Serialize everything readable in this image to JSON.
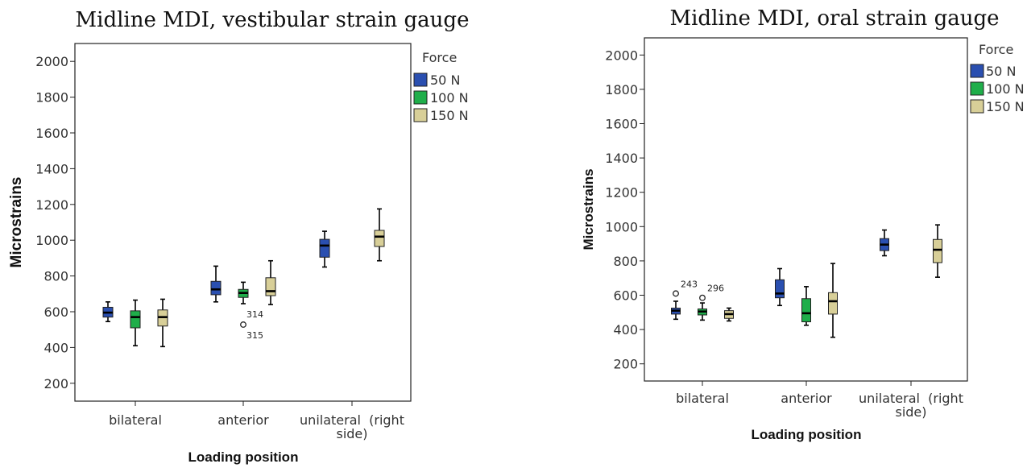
{
  "legend": {
    "title": "Force",
    "entries": [
      {
        "label": "50 N",
        "color": "#2a4fb0"
      },
      {
        "label": "100 N",
        "color": "#1fae4a"
      },
      {
        "label": "150 N",
        "color": "#d8cf98"
      }
    ]
  },
  "chart_data": [
    {
      "type": "boxplot",
      "title": "Midline MDI, vestibular strain gauge",
      "xlabel": "Loading position",
      "ylabel": "Microstrains",
      "ylim": [
        100,
        2100
      ],
      "yticks": [
        200,
        400,
        600,
        800,
        1000,
        1200,
        1400,
        1600,
        1800,
        2000
      ],
      "grid": false,
      "legend_position": "top-right",
      "categories": [
        {
          "label": "bilateral",
          "lines": [
            "bilateral"
          ]
        },
        {
          "label": "anterior",
          "lines": [
            "anterior"
          ]
        },
        {
          "label": "unilateral (right side)",
          "lines": [
            "unilateral  (right",
            "side)"
          ]
        }
      ],
      "series": [
        {
          "name": "50 N",
          "boxes": [
            {
              "min": 545,
              "q1": 570,
              "median": 595,
              "q3": 625,
              "max": 655
            },
            {
              "min": 655,
              "q1": 695,
              "median": 725,
              "q3": 770,
              "max": 855
            },
            {
              "min": 850,
              "q1": 905,
              "median": 970,
              "q3": 1005,
              "max": 1050
            }
          ]
        },
        {
          "name": "100 N",
          "boxes": [
            {
              "min": 410,
              "q1": 510,
              "median": 570,
              "q3": 605,
              "max": 665
            },
            {
              "min": 645,
              "q1": 680,
              "median": 705,
              "q3": 725,
              "max": 765,
              "outliers": [
                {
                  "value": 528,
                  "labels": [
                    "314",
                    "315"
                  ]
                }
              ]
            },
            null
          ]
        },
        {
          "name": "150 N",
          "boxes": [
            {
              "min": 405,
              "q1": 520,
              "median": 570,
              "q3": 610,
              "max": 670
            },
            {
              "min": 640,
              "q1": 690,
              "median": 715,
              "q3": 790,
              "max": 885
            },
            {
              "min": 885,
              "q1": 965,
              "median": 1020,
              "q3": 1055,
              "max": 1175
            }
          ]
        }
      ]
    },
    {
      "type": "boxplot",
      "title": "Midline MDI, oral strain gauge",
      "xlabel": "Loading position",
      "ylabel": "Microstrains",
      "ylim": [
        100,
        2100
      ],
      "yticks": [
        200,
        400,
        600,
        800,
        1000,
        1200,
        1400,
        1600,
        1800,
        2000
      ],
      "grid": false,
      "legend_position": "top-right",
      "categories": [
        {
          "label": "bilateral",
          "lines": [
            "bilateral"
          ]
        },
        {
          "label": "anterior",
          "lines": [
            "anterior"
          ]
        },
        {
          "label": "unilateral (right side)",
          "lines": [
            "unilateral  (right",
            "side)"
          ]
        }
      ],
      "series": [
        {
          "name": "50 N",
          "boxes": [
            {
              "min": 460,
              "q1": 490,
              "median": 510,
              "q3": 525,
              "max": 565,
              "outliers": [
                {
                  "value": 610,
                  "labels": [
                    "243"
                  ]
                }
              ]
            },
            {
              "min": 540,
              "q1": 585,
              "median": 610,
              "q3": 690,
              "max": 755
            },
            {
              "min": 830,
              "q1": 860,
              "median": 895,
              "q3": 930,
              "max": 980
            }
          ]
        },
        {
          "name": "100 N",
          "boxes": [
            {
              "min": 455,
              "q1": 485,
              "median": 505,
              "q3": 520,
              "max": 555,
              "outliers": [
                {
                  "value": 585,
                  "labels": [
                    "296"
                  ]
                }
              ]
            },
            {
              "min": 425,
              "q1": 445,
              "median": 495,
              "q3": 580,
              "max": 650
            },
            null
          ]
        },
        {
          "name": "150 N",
          "boxes": [
            {
              "min": 450,
              "q1": 465,
              "median": 490,
              "q3": 510,
              "max": 525
            },
            {
              "min": 355,
              "q1": 490,
              "median": 565,
              "q3": 615,
              "max": 785
            },
            {
              "min": 705,
              "q1": 790,
              "median": 865,
              "q3": 925,
              "max": 1010
            }
          ]
        }
      ]
    }
  ]
}
